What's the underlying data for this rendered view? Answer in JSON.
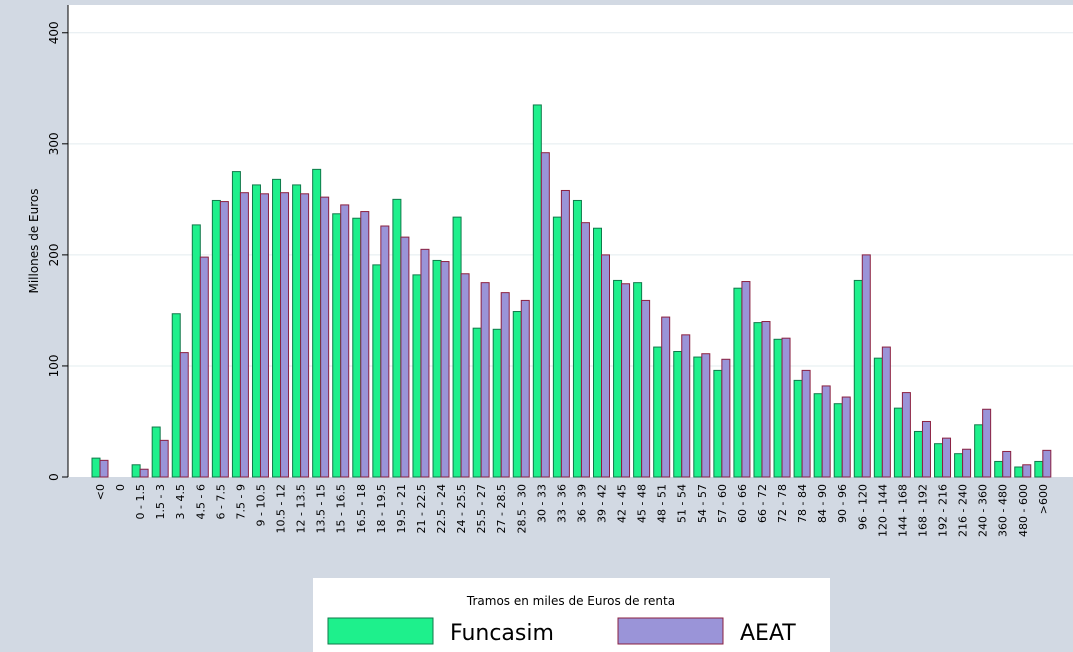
{
  "chart_data": {
    "type": "bar",
    "y_label": "Millones de Euros",
    "legend_title": "Tramos en miles de Euros de renta",
    "categories": [
      "<0",
      "0",
      "0 - 1.5",
      "1.5 - 3",
      "3 - 4.5",
      "4.5 - 6",
      "6 - 7.5",
      "7.5 - 9",
      "9 - 10.5",
      "10.5 - 12",
      "12 - 13.5",
      "13.5 - 15",
      "15 - 16.5",
      "16.5 - 18",
      "18 - 19.5",
      "19.5 - 21",
      "21 - 22.5",
      "22.5 - 24",
      "24 - 25.5",
      "25.5 - 27",
      "27 - 28.5",
      "28.5 - 30",
      "30 - 33",
      "33 - 36",
      "36 - 39",
      "39 - 42",
      "42 - 45",
      "45 - 48",
      "48 - 51",
      "51 - 54",
      "54 - 57",
      "57 - 60",
      "60 - 66",
      "66 - 72",
      "72 - 78",
      "78 - 84",
      "84 - 90",
      "90 - 96",
      "96 - 120",
      "120 - 144",
      "144 - 168",
      "168 - 192",
      "192 - 216",
      "216 - 240",
      "240 - 360",
      "360 - 480",
      "480 - 600",
      ">600"
    ],
    "series": [
      {
        "name": "Funcasim",
        "color": "#1ef08c",
        "edge": "#0f7a4a",
        "values": [
          17,
          0,
          11,
          45,
          147,
          227,
          249,
          275,
          263,
          268,
          263,
          277,
          237,
          233,
          191,
          250,
          182,
          195,
          234,
          134,
          133,
          149,
          335,
          234,
          249,
          224,
          177,
          175,
          117,
          113,
          108,
          96,
          170,
          139,
          124,
          87,
          75,
          66,
          177,
          107,
          62,
          41,
          30,
          21,
          47,
          14,
          9,
          14
        ]
      },
      {
        "name": "AEAT",
        "color": "#9a94d8",
        "edge": "#8b2040",
        "values": [
          15,
          0,
          7,
          33,
          112,
          198,
          248,
          256,
          255,
          256,
          255,
          252,
          245,
          239,
          226,
          216,
          205,
          194,
          183,
          175,
          166,
          159,
          292,
          258,
          229,
          200,
          174,
          159,
          144,
          128,
          111,
          106,
          176,
          140,
          125,
          96,
          82,
          72,
          200,
          117,
          76,
          50,
          35,
          25,
          61,
          23,
          11,
          24
        ]
      }
    ],
    "ylim": [
      0,
      425
    ],
    "yticks": [
      0,
      100,
      200,
      300,
      400
    ],
    "grid": true
  }
}
